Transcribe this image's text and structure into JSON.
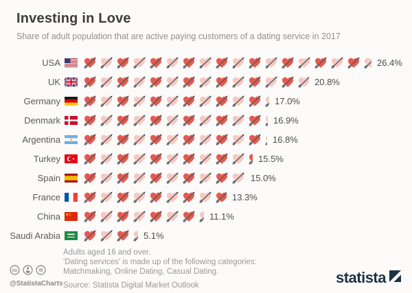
{
  "header": {
    "title": "Investing in Love",
    "subtitle": "Share of adult population that are active paying customers of a dating service in 2017"
  },
  "chart_data": {
    "type": "pictogram",
    "icon": "heart-with-arrow",
    "unit": "%",
    "unit_per_icon": 1.5,
    "title": "Investing in Love",
    "subtitle": "Share of adult population that are active paying customers of a dating service in 2017",
    "categories": [
      "USA",
      "UK",
      "Germany",
      "Denmark",
      "Argentina",
      "Turkey",
      "Spain",
      "France",
      "China",
      "Saudi Arabia"
    ],
    "values": [
      26.4,
      20.8,
      17.0,
      16.9,
      16.8,
      15.5,
      15.0,
      13.3,
      11.1,
      5.1
    ],
    "rows": [
      {
        "country": "USA",
        "flag": "usa",
        "value": 26.4,
        "label": "26.4%"
      },
      {
        "country": "UK",
        "flag": "uk",
        "value": 20.8,
        "label": "20.8%"
      },
      {
        "country": "Germany",
        "flag": "germany",
        "value": 17.0,
        "label": "17.0%"
      },
      {
        "country": "Denmark",
        "flag": "denmark",
        "value": 16.9,
        "label": "16.9%"
      },
      {
        "country": "Argentina",
        "flag": "argentina",
        "value": 16.8,
        "label": "16.8%"
      },
      {
        "country": "Turkey",
        "flag": "turkey",
        "value": 15.5,
        "label": "15.5%"
      },
      {
        "country": "Spain",
        "flag": "spain",
        "value": 15.0,
        "label": "15.0%"
      },
      {
        "country": "France",
        "flag": "france",
        "value": 13.3,
        "label": "13.3%"
      },
      {
        "country": "China",
        "flag": "china",
        "value": 11.1,
        "label": "11.1%"
      },
      {
        "country": "Saudi Arabia",
        "flag": "saudi",
        "value": 5.1,
        "label": "5.1%"
      }
    ],
    "colors": {
      "heart_dark": "#e45a4f",
      "heart_light": "#f6c8c3",
      "arrow": "#53575a"
    }
  },
  "footer": {
    "notes": [
      "Adults aged 16 and over.",
      "'Dating services' is made up of the following categories:",
      "Matchmaking, Online Dating, Casual Dating."
    ],
    "source": "Source: Statista Digital Market Outlook",
    "credit": "@StatistaCharts",
    "logo": "statista"
  }
}
